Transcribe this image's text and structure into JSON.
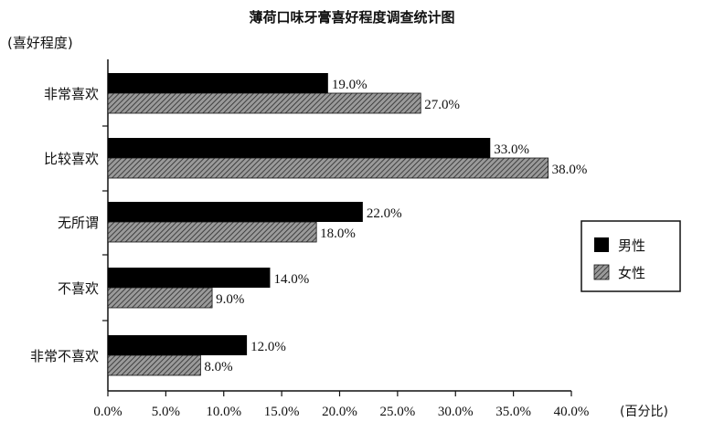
{
  "chart_data": {
    "type": "bar",
    "orientation": "horizontal",
    "title": "薄荷口味牙膏喜好程度调查统计图",
    "ylabel": "(喜好程度)",
    "xlabel": "(百分比)",
    "categories": [
      "非常喜欢",
      "比较喜欢",
      "无所谓",
      "不喜欢",
      "非常不喜欢"
    ],
    "series": [
      {
        "name": "男性",
        "values": [
          19.0,
          33.0,
          22.0,
          14.0,
          12.0
        ],
        "labels": [
          "19.0%",
          "33.0%",
          "22.0%",
          "14.0%",
          "12.0%"
        ],
        "fill": "#000000"
      },
      {
        "name": "女性",
        "values": [
          27.0,
          38.0,
          18.0,
          9.0,
          8.0
        ],
        "labels": [
          "27.0%",
          "38.0%",
          "18.0%",
          "9.0%",
          "8.0%"
        ],
        "fill": "hatched-gray"
      }
    ],
    "xticks": [
      "0.0%",
      "5.0%",
      "10.0%",
      "15.0%",
      "20.0%",
      "25.0%",
      "30.0%",
      "35.0%",
      "40.0%"
    ],
    "xlim": [
      0,
      40
    ],
    "grid": false,
    "legend_position": "right"
  }
}
